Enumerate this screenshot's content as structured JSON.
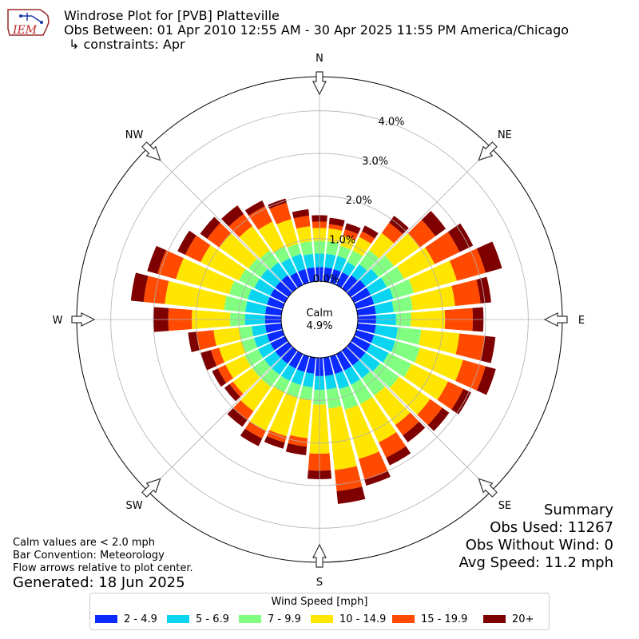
{
  "header": {
    "logo_text": "IEM",
    "title": "Windrose Plot for [PVB] Platteville",
    "subtitle": "Obs Between: 01 Apr 2010 12:55 AM - 30 Apr 2025 11:55 PM America/Chicago",
    "constraints": "↳ constraints: Apr"
  },
  "notes": {
    "calm_def": "Calm values are < 2.0 mph",
    "bar_convention": "Bar Convention: Meteorology",
    "flow_arrows": "Flow arrows relative to plot center.",
    "generated": "Generated: 18 Jun 2025"
  },
  "summary": {
    "heading": "Summary",
    "obs_used": "Obs Used: 11267",
    "obs_without_wind": "Obs Without Wind: 0",
    "avg_speed": "Avg Speed: 11.2 mph"
  },
  "legend": {
    "title": "Wind Speed [mph]"
  },
  "chart_data": {
    "type": "windrose",
    "title": "Windrose Plot for [PVB] Platteville",
    "calm": {
      "label": "Calm",
      "value_text": "4.9%",
      "value": 4.9
    },
    "radial_ticks": [
      "0.0%",
      "1.0%",
      "2.0%",
      "3.0%",
      "4.0%"
    ],
    "radial_tick_values": [
      0,
      1,
      2,
      3,
      4
    ],
    "radial_max": 4.8,
    "compass_labels": [
      "N",
      "NE",
      "E",
      "SE",
      "S",
      "SW",
      "W",
      "NW"
    ],
    "bins": [
      {
        "label": "2 - 4.9",
        "color": "#0a2aff"
      },
      {
        "label": "5 - 6.9",
        "color": "#0ad4f0"
      },
      {
        "label": "7 - 9.9",
        "color": "#80ff80"
      },
      {
        "label": "10 - 14.9",
        "color": "#ffe600"
      },
      {
        "label": "15 - 19.9",
        "color": "#ff4a00"
      },
      {
        "label": "20+",
        "color": "#7f0000"
      }
    ],
    "directions_deg": [
      0,
      10,
      20,
      30,
      40,
      50,
      60,
      70,
      80,
      90,
      100,
      110,
      120,
      130,
      140,
      150,
      160,
      170,
      180,
      190,
      200,
      210,
      220,
      230,
      240,
      250,
      260,
      270,
      280,
      290,
      300,
      310,
      320,
      330,
      340,
      350
    ],
    "cumulative": [
      [
        0.33,
        0.65,
        0.95,
        1.25,
        1.4,
        1.55
      ],
      [
        0.33,
        0.65,
        0.95,
        1.25,
        1.35,
        1.5
      ],
      [
        0.33,
        0.65,
        0.9,
        1.15,
        1.3,
        1.45
      ],
      [
        0.33,
        0.6,
        0.9,
        1.25,
        1.4,
        1.55
      ],
      [
        0.38,
        0.7,
        1.1,
        1.6,
        1.9,
        2.1
      ],
      [
        0.43,
        0.8,
        1.25,
        2.0,
        2.45,
        2.75
      ],
      [
        0.43,
        0.85,
        1.3,
        2.1,
        2.75,
        3.1
      ],
      [
        0.43,
        0.9,
        1.4,
        2.45,
        3.15,
        3.55
      ],
      [
        0.43,
        0.85,
        1.3,
        2.3,
        2.9,
        3.15
      ],
      [
        0.43,
        0.9,
        1.25,
        2.05,
        2.7,
        2.95
      ],
      [
        0.43,
        0.95,
        1.5,
        2.4,
        3.0,
        3.25
      ],
      [
        0.43,
        0.95,
        1.55,
        2.6,
        3.15,
        3.4
      ],
      [
        0.43,
        0.9,
        1.5,
        2.45,
        2.85,
        3.05
      ],
      [
        0.43,
        0.85,
        1.4,
        2.3,
        2.65,
        2.85
      ],
      [
        0.43,
        0.8,
        1.3,
        2.15,
        2.45,
        2.65
      ],
      [
        0.43,
        0.8,
        1.3,
        2.3,
        2.7,
        2.9
      ],
      [
        0.43,
        0.8,
        1.3,
        2.5,
        3.0,
        3.15
      ],
      [
        0.43,
        0.75,
        1.2,
        2.65,
        3.15,
        3.45
      ],
      [
        0.43,
        0.75,
        1.1,
        2.25,
        2.65,
        2.85
      ],
      [
        0.38,
        0.7,
        1.0,
        1.9,
        2.1,
        2.3
      ],
      [
        0.38,
        0.7,
        1.0,
        1.95,
        2.1,
        2.25
      ],
      [
        0.38,
        0.7,
        1.0,
        2.0,
        2.2,
        2.4
      ],
      [
        0.38,
        0.7,
        1.05,
        1.75,
        2.0,
        2.2
      ],
      [
        0.38,
        0.7,
        1.05,
        1.6,
        1.7,
        1.85
      ],
      [
        0.38,
        0.7,
        1.05,
        1.55,
        1.75,
        1.9
      ],
      [
        0.38,
        0.7,
        1.0,
        1.55,
        1.75,
        2.0
      ],
      [
        0.38,
        0.7,
        1.0,
        1.6,
        2.0,
        2.2
      ],
      [
        0.38,
        0.85,
        1.2,
        2.1,
        2.65,
        3.0
      ],
      [
        0.38,
        0.85,
        1.35,
        2.75,
        3.25,
        3.55
      ],
      [
        0.38,
        0.85,
        1.3,
        2.6,
        3.05,
        3.3
      ],
      [
        0.38,
        0.8,
        1.2,
        2.2,
        2.6,
        2.8
      ],
      [
        0.38,
        0.8,
        1.15,
        2.0,
        2.35,
        2.55
      ],
      [
        0.38,
        0.75,
        1.1,
        1.8,
        2.15,
        2.4
      ],
      [
        0.33,
        0.7,
        1.0,
        1.65,
        2.05,
        2.2
      ],
      [
        0.33,
        0.7,
        0.95,
        1.55,
        1.95,
        2.05
      ],
      [
        0.33,
        0.65,
        0.95,
        1.3,
        1.55,
        1.7
      ]
    ]
  }
}
